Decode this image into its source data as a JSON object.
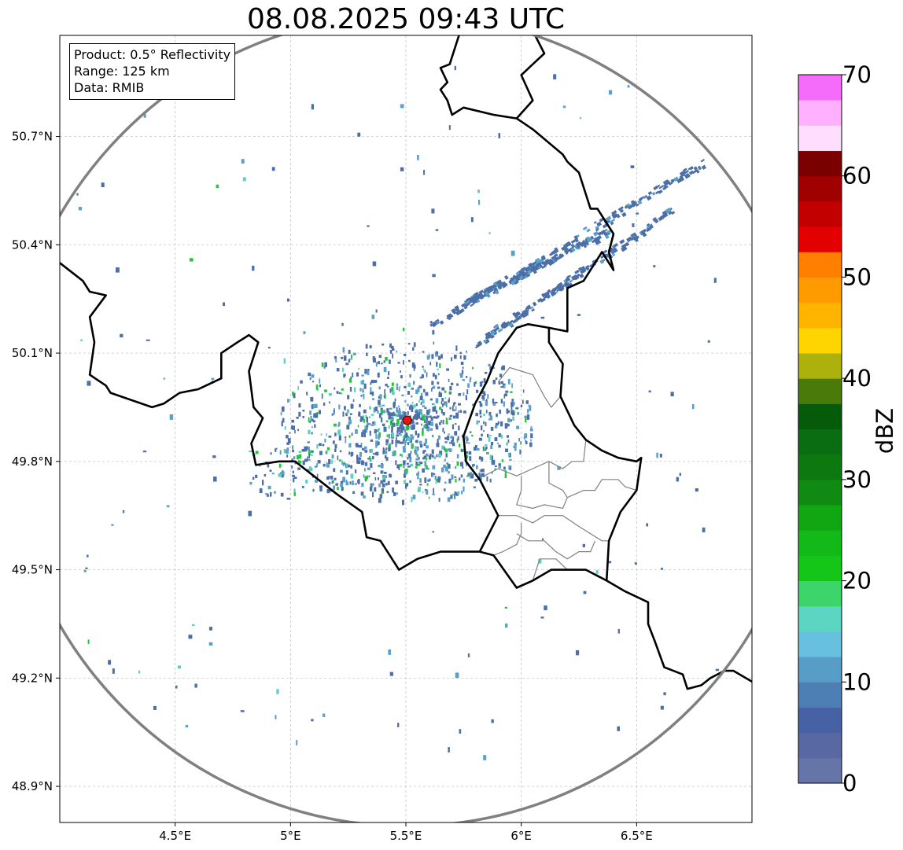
{
  "title": "08.08.2025 09:43 UTC",
  "info": {
    "product": "Product: 0.5° Reflectivity",
    "range": "Range: 125 km",
    "data": "Data: RMIB"
  },
  "map": {
    "lon_range": [
      4.0,
      7.0
    ],
    "lat_range": [
      48.8,
      50.98
    ],
    "lon_ticks": [
      4.5,
      5.0,
      5.5,
      6.0,
      6.5
    ],
    "lon_tick_labels": [
      "4.5°E",
      "5°E",
      "5.5°E",
      "6°E",
      "6.5°E"
    ],
    "lat_ticks": [
      48.9,
      49.2,
      49.5,
      49.8,
      50.1,
      50.4,
      50.7
    ],
    "lat_tick_labels": [
      "48.9°N",
      "49.2°N",
      "49.5°N",
      "49.8°N",
      "50.1°N",
      "50.4°N",
      "50.7°N"
    ],
    "grid": true,
    "radar_site": {
      "lon": 5.506,
      "lat": 49.914
    },
    "range_ring_km": 125,
    "ring_color": "#808080",
    "site_marker_color": "#e8150f",
    "borders": {
      "country": [
        [
          [
            4.0,
            50.35
          ],
          [
            4.1,
            50.3
          ],
          [
            4.13,
            50.27
          ],
          [
            4.2,
            50.26
          ],
          [
            4.13,
            50.2
          ],
          [
            4.15,
            50.13
          ],
          [
            4.13,
            50.04
          ],
          [
            4.2,
            50.01
          ],
          [
            4.22,
            49.99
          ],
          [
            4.4,
            49.95
          ],
          [
            4.45,
            49.96
          ],
          [
            4.52,
            49.99
          ],
          [
            4.6,
            50.0
          ],
          [
            4.7,
            50.03
          ],
          [
            4.7,
            50.1
          ],
          [
            4.77,
            50.13
          ],
          [
            4.82,
            50.15
          ],
          [
            4.86,
            50.13
          ],
          [
            4.82,
            50.05
          ],
          [
            4.84,
            49.95
          ],
          [
            4.88,
            49.92
          ],
          [
            4.83,
            49.85
          ],
          [
            4.85,
            49.79
          ],
          [
            4.95,
            49.8
          ],
          [
            5.02,
            49.8
          ],
          [
            5.1,
            49.76
          ],
          [
            5.2,
            49.71
          ],
          [
            5.31,
            49.66
          ],
          [
            5.33,
            49.59
          ],
          [
            5.39,
            49.58
          ],
          [
            5.47,
            49.5
          ],
          [
            5.55,
            49.53
          ],
          [
            5.65,
            49.55
          ],
          [
            5.73,
            49.55
          ],
          [
            5.82,
            49.55
          ],
          [
            5.88,
            49.54
          ],
          [
            5.98,
            49.45
          ],
          [
            6.05,
            49.47
          ],
          [
            6.13,
            49.5
          ],
          [
            6.2,
            49.5
          ],
          [
            6.28,
            49.5
          ],
          [
            6.37,
            49.47
          ],
          [
            6.45,
            49.44
          ],
          [
            6.55,
            49.41
          ],
          [
            6.55,
            49.35
          ],
          [
            6.58,
            49.3
          ],
          [
            6.62,
            49.23
          ],
          [
            6.7,
            49.21
          ],
          [
            6.72,
            49.17
          ],
          [
            6.78,
            49.18
          ],
          [
            6.82,
            49.2
          ],
          [
            6.88,
            49.22
          ],
          [
            6.92,
            49.22
          ],
          [
            7.0,
            49.19
          ]
        ],
        [
          [
            5.82,
            49.55
          ],
          [
            5.9,
            49.65
          ],
          [
            5.82,
            49.75
          ],
          [
            5.76,
            49.8
          ],
          [
            5.75,
            49.87
          ],
          [
            5.8,
            49.96
          ],
          [
            5.85,
            50.02
          ],
          [
            5.9,
            50.1
          ],
          [
            5.98,
            50.17
          ],
          [
            6.03,
            50.18
          ],
          [
            6.12,
            50.17
          ],
          [
            6.12,
            50.13
          ],
          [
            6.18,
            50.07
          ],
          [
            6.17,
            49.98
          ],
          [
            6.23,
            49.9
          ],
          [
            6.28,
            49.86
          ],
          [
            6.35,
            49.83
          ],
          [
            6.42,
            49.81
          ],
          [
            6.5,
            49.8
          ],
          [
            6.52,
            49.81
          ],
          [
            6.5,
            49.72
          ],
          [
            6.43,
            49.66
          ],
          [
            6.38,
            49.58
          ],
          [
            6.37,
            49.47
          ]
        ],
        [
          [
            6.12,
            50.17
          ],
          [
            6.2,
            50.16
          ],
          [
            6.2,
            50.28
          ],
          [
            6.27,
            50.3
          ],
          [
            6.35,
            50.38
          ],
          [
            6.4,
            50.33
          ],
          [
            6.38,
            50.38
          ],
          [
            6.4,
            50.43
          ],
          [
            6.33,
            50.5
          ],
          [
            6.3,
            50.5
          ],
          [
            6.25,
            50.6
          ],
          [
            6.2,
            50.63
          ],
          [
            6.18,
            50.65
          ],
          [
            6.05,
            50.72
          ],
          [
            5.98,
            50.75
          ],
          [
            5.88,
            50.76
          ],
          [
            5.75,
            50.78
          ],
          [
            5.7,
            50.76
          ],
          [
            5.68,
            50.8
          ],
          [
            5.65,
            50.83
          ],
          [
            5.68,
            50.85
          ],
          [
            5.65,
            50.89
          ],
          [
            5.69,
            50.9
          ],
          [
            5.73,
            50.98
          ]
        ],
        [
          [
            6.06,
            50.98
          ],
          [
            6.1,
            50.93
          ],
          [
            6.05,
            50.9
          ],
          [
            6.0,
            50.87
          ],
          [
            6.05,
            50.8
          ],
          [
            5.98,
            50.75
          ]
        ]
      ],
      "province": [
        [
          [
            5.9,
            50.02
          ],
          [
            5.95,
            50.06
          ],
          [
            6.0,
            50.05
          ],
          [
            6.05,
            50.04
          ],
          [
            6.1,
            49.98
          ],
          [
            6.13,
            49.95
          ],
          [
            6.17,
            49.98
          ]
        ],
        [
          [
            5.84,
            49.76
          ],
          [
            5.9,
            49.78
          ],
          [
            5.98,
            49.76
          ],
          [
            6.05,
            49.78
          ],
          [
            6.12,
            49.8
          ],
          [
            6.18,
            49.78
          ],
          [
            6.22,
            49.8
          ],
          [
            6.27,
            49.8
          ],
          [
            6.28,
            49.86
          ]
        ],
        [
          [
            6.0,
            49.76
          ],
          [
            6.0,
            49.72
          ],
          [
            5.98,
            49.68
          ],
          [
            6.05,
            49.67
          ],
          [
            6.1,
            49.68
          ],
          [
            6.18,
            49.67
          ],
          [
            6.2,
            49.7
          ],
          [
            6.27,
            49.72
          ],
          [
            6.32,
            49.72
          ],
          [
            6.35,
            49.75
          ],
          [
            6.42,
            49.75
          ],
          [
            6.45,
            49.73
          ],
          [
            6.5,
            49.72
          ]
        ],
        [
          [
            5.9,
            49.65
          ],
          [
            5.98,
            49.65
          ],
          [
            6.05,
            49.63
          ],
          [
            6.1,
            49.65
          ],
          [
            6.18,
            49.65
          ],
          [
            6.25,
            49.62
          ],
          [
            6.3,
            49.6
          ],
          [
            6.35,
            49.58
          ],
          [
            6.38,
            49.58
          ]
        ],
        [
          [
            5.98,
            49.6
          ],
          [
            6.03,
            49.58
          ],
          [
            6.1,
            49.58
          ],
          [
            6.15,
            49.55
          ],
          [
            6.2,
            49.53
          ],
          [
            6.25,
            49.55
          ],
          [
            6.3,
            49.55
          ],
          [
            6.32,
            49.58
          ]
        ],
        [
          [
            5.88,
            49.54
          ],
          [
            5.92,
            49.55
          ],
          [
            5.98,
            49.57
          ],
          [
            6.0,
            49.6
          ],
          [
            6.0,
            49.63
          ]
        ],
        [
          [
            6.05,
            49.47
          ],
          [
            6.08,
            49.53
          ],
          [
            6.15,
            49.53
          ],
          [
            6.2,
            49.5
          ]
        ],
        [
          [
            6.12,
            49.8
          ],
          [
            6.12,
            49.74
          ],
          [
            6.18,
            49.72
          ],
          [
            6.2,
            49.7
          ]
        ]
      ]
    }
  },
  "colorbar": {
    "label": "dBZ",
    "min": 0,
    "max": 70,
    "ticks": [
      0,
      10,
      20,
      30,
      40,
      50,
      60,
      70
    ],
    "tick_labels": [
      "0",
      "10",
      "20",
      "30",
      "40",
      "50",
      "60",
      "70"
    ],
    "bins": [
      {
        "from": 0,
        "to": 2.5,
        "color": "#6575a8"
      },
      {
        "from": 2.5,
        "to": 5,
        "color": "#5768a3"
      },
      {
        "from": 5,
        "to": 7.5,
        "color": "#4662a5"
      },
      {
        "from": 7.5,
        "to": 10,
        "color": "#4d7fb5"
      },
      {
        "from": 10,
        "to": 12.5,
        "color": "#589cc8"
      },
      {
        "from": 12.5,
        "to": 15,
        "color": "#66c0de"
      },
      {
        "from": 15,
        "to": 17.5,
        "color": "#5cd6c2"
      },
      {
        "from": 17.5,
        "to": 20,
        "color": "#3dd46b"
      },
      {
        "from": 20,
        "to": 22.5,
        "color": "#13c618"
      },
      {
        "from": 22.5,
        "to": 25,
        "color": "#12b918"
      },
      {
        "from": 25,
        "to": 27.5,
        "color": "#11a712"
      },
      {
        "from": 27.5,
        "to": 30,
        "color": "#108a13"
      },
      {
        "from": 30,
        "to": 32.5,
        "color": "#0d780f"
      },
      {
        "from": 32.5,
        "to": 35,
        "color": "#0b6d11"
      },
      {
        "from": 35,
        "to": 37.5,
        "color": "#065b0a"
      },
      {
        "from": 37.5,
        "to": 40,
        "color": "#4a7a0a"
      },
      {
        "from": 40,
        "to": 42.5,
        "color": "#adb10b"
      },
      {
        "from": 42.5,
        "to": 45,
        "color": "#ffd500"
      },
      {
        "from": 45,
        "to": 47.5,
        "color": "#ffb500"
      },
      {
        "from": 47.5,
        "to": 50,
        "color": "#ff9a00"
      },
      {
        "from": 50,
        "to": 52.5,
        "color": "#ff8000"
      },
      {
        "from": 52.5,
        "to": 55,
        "color": "#e30000"
      },
      {
        "from": 55,
        "to": 57.5,
        "color": "#c20000"
      },
      {
        "from": 57.5,
        "to": 60,
        "color": "#a00000"
      },
      {
        "from": 60,
        "to": 62.5,
        "color": "#7b0000"
      },
      {
        "from": 62.5,
        "to": 65,
        "color": "#ffddfd"
      },
      {
        "from": 65,
        "to": 67.5,
        "color": "#ffb1ff"
      },
      {
        "from": 67.5,
        "to": 70,
        "color": "#f56bfa"
      }
    ]
  },
  "echo_colors": {
    "light": "#4d6fa8",
    "medium": "#5aa0c8",
    "cyan": "#5ad0c0",
    "green": "#22c837"
  }
}
